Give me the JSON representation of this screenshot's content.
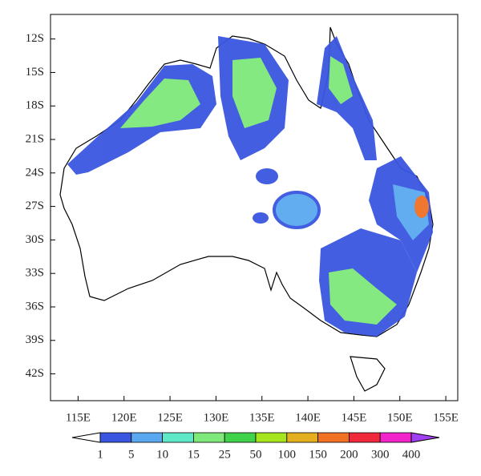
{
  "map": {
    "lon_range": [
      112,
      156.3
    ],
    "lat_range": [
      -44.4,
      -9.8
    ],
    "lat_ticks": [
      {
        "value": -12,
        "label": "12S"
      },
      {
        "value": -15,
        "label": "15S"
      },
      {
        "value": -18,
        "label": "18S"
      },
      {
        "value": -21,
        "label": "21S"
      },
      {
        "value": -24,
        "label": "24S"
      },
      {
        "value": -27,
        "label": "27S"
      },
      {
        "value": -30,
        "label": "30S"
      },
      {
        "value": -33,
        "label": "33S"
      },
      {
        "value": -36,
        "label": "36S"
      },
      {
        "value": -39,
        "label": "39S"
      },
      {
        "value": -42,
        "label": "42S"
      }
    ],
    "lon_ticks": [
      {
        "value": 115,
        "label": "115E"
      },
      {
        "value": 120,
        "label": "120E"
      },
      {
        "value": 125,
        "label": "125E"
      },
      {
        "value": 130,
        "label": "130E"
      },
      {
        "value": 135,
        "label": "135E"
      },
      {
        "value": 140,
        "label": "140E"
      },
      {
        "value": 145,
        "label": "145E"
      },
      {
        "value": 150,
        "label": "150E"
      },
      {
        "value": 155,
        "label": "155E"
      }
    ],
    "colorbar": {
      "levels": [
        1,
        5,
        10,
        15,
        25,
        50,
        100,
        150,
        200,
        300,
        400
      ],
      "colors": [
        "#ffffff",
        "#3a56e0",
        "#5aa8f0",
        "#5ee8c8",
        "#7ee87a",
        "#3fd24a",
        "#a6e41e",
        "#e4b020",
        "#f07024",
        "#f0283c",
        "#f024c8",
        "#a040f0"
      ]
    }
  }
}
